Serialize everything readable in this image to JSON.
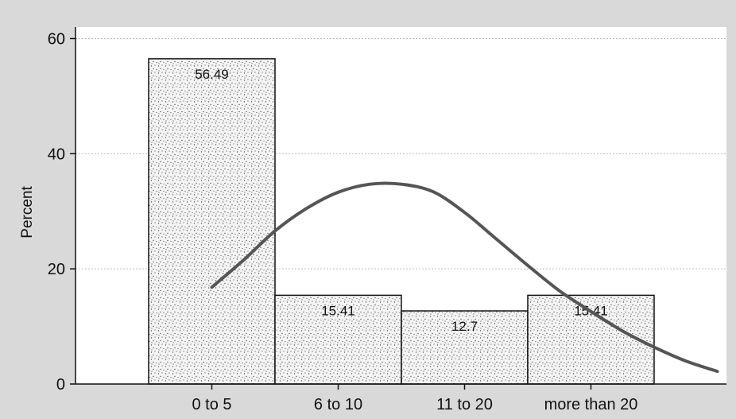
{
  "chart_data": {
    "type": "bar",
    "ylabel": "Percent",
    "xlabel": "",
    "categories": [
      "0 to 5",
      "6 to 10",
      "11 to 20",
      "more than 20"
    ],
    "values": [
      56.49,
      15.41,
      12.7,
      15.41
    ],
    "data_labels": [
      "56.49",
      "15.41",
      "12.7",
      "15.41"
    ],
    "ylim": [
      0,
      62
    ],
    "yticks": [
      0,
      20,
      40,
      60
    ],
    "grid": true,
    "overlay_curve": {
      "type": "normal-density",
      "x": [
        0.5,
        0.75,
        1.0,
        1.25,
        1.5,
        1.75,
        2.0,
        2.25,
        2.5,
        2.75,
        3.0,
        3.25,
        3.5,
        3.75,
        4.0,
        4.25,
        4.5
      ],
      "y": [
        16.8,
        21.5,
        26.6,
        30.5,
        33.3,
        34.7,
        34.7,
        33.4,
        29.8,
        25.2,
        20.6,
        16.2,
        12.6,
        9.2,
        6.4,
        4.0,
        2.2
      ]
    },
    "colors": {
      "background": "#d9d9d9",
      "plot_area": "#ffffff",
      "bar_fill": "#f4f4f4",
      "bar_stipple": "#555555",
      "bar_border": "#111111",
      "curve": "#555555",
      "grid": "#bdbdbd"
    }
  }
}
